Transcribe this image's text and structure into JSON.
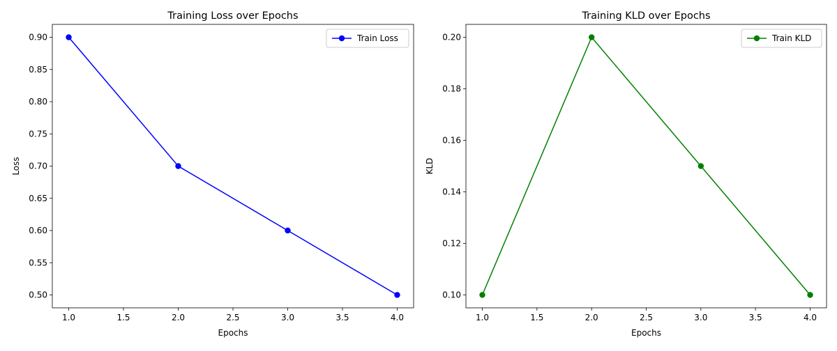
{
  "chart_data": [
    {
      "type": "line",
      "title": "Training Loss over Epochs",
      "xlabel": "Epochs",
      "ylabel": "Loss",
      "x": [
        1,
        2,
        3,
        4
      ],
      "xlim": [
        0.85,
        4.15
      ],
      "ylim": [
        0.48,
        0.92
      ],
      "xticks": [
        1.0,
        1.5,
        2.0,
        2.5,
        3.0,
        3.5,
        4.0
      ],
      "xtick_labels": [
        "1.0",
        "1.5",
        "2.0",
        "2.5",
        "3.0",
        "3.5",
        "4.0"
      ],
      "yticks": [
        0.5,
        0.55,
        0.6,
        0.65,
        0.7,
        0.75,
        0.8,
        0.85,
        0.9
      ],
      "ytick_labels": [
        "0.50",
        "0.55",
        "0.60",
        "0.65",
        "0.70",
        "0.75",
        "0.80",
        "0.85",
        "0.90"
      ],
      "grid": false,
      "legend_position": "top-right",
      "series": [
        {
          "name": "Train Loss",
          "values": [
            0.9,
            0.7,
            0.6,
            0.5
          ],
          "color": "#0000ff",
          "marker": "circle"
        }
      ]
    },
    {
      "type": "line",
      "title": "Training KLD over Epochs",
      "xlabel": "Epochs",
      "ylabel": "KLD",
      "x": [
        1,
        2,
        3,
        4
      ],
      "xlim": [
        0.85,
        4.15
      ],
      "ylim": [
        0.095,
        0.205
      ],
      "xticks": [
        1.0,
        1.5,
        2.0,
        2.5,
        3.0,
        3.5,
        4.0
      ],
      "xtick_labels": [
        "1.0",
        "1.5",
        "2.0",
        "2.5",
        "3.0",
        "3.5",
        "4.0"
      ],
      "yticks": [
        0.1,
        0.12,
        0.14,
        0.16,
        0.18,
        0.2
      ],
      "ytick_labels": [
        "0.10",
        "0.12",
        "0.14",
        "0.16",
        "0.18",
        "0.20"
      ],
      "grid": false,
      "legend_position": "top-right",
      "series": [
        {
          "name": "Train KLD",
          "values": [
            0.1,
            0.2,
            0.15,
            0.1
          ],
          "color": "#008000",
          "marker": "circle"
        }
      ]
    }
  ]
}
